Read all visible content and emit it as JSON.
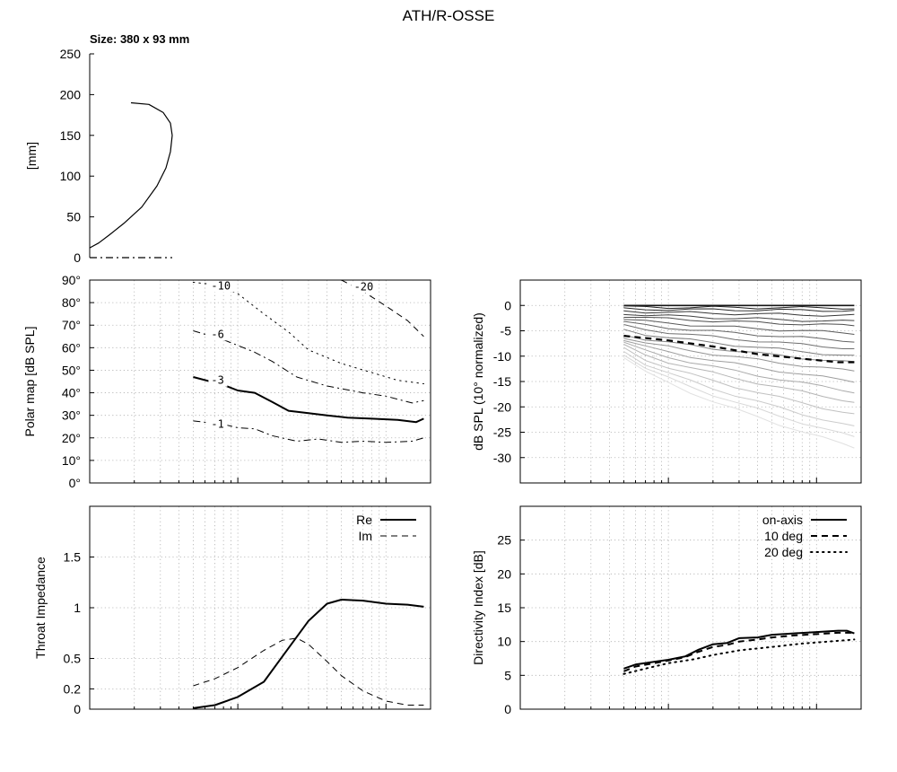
{
  "page": {
    "title": "ATH/R-OSSE",
    "size_label": "Size: 380 x 93 mm"
  },
  "chart_data": [
    {
      "id": "profile",
      "type": "line",
      "ylabel": "[mm]",
      "ylim": [
        0,
        250
      ],
      "xlim": [
        0,
        380
      ],
      "yticks": [
        "0",
        "50",
        "100",
        "150",
        "200",
        "250"
      ],
      "series": [
        {
          "style": "solid",
          "x": [
            0,
            10,
            22,
            38,
            58,
            75,
            85,
            90,
            92,
            90,
            82,
            66,
            46
          ],
          "y": [
            12,
            18,
            28,
            42,
            62,
            88,
            110,
            130,
            150,
            165,
            178,
            188,
            190
          ]
        },
        {
          "style": "dashdot",
          "x": [
            0,
            92
          ],
          "y": [
            0,
            0
          ]
        }
      ]
    },
    {
      "id": "polar_map",
      "type": "line",
      "ylabel": "Polar map [dB SPL]",
      "ylim": [
        0,
        90
      ],
      "xscale": "log",
      "xlim": [
        100,
        20000
      ],
      "yticks": [
        "0°",
        "10°",
        "20°",
        "30°",
        "40°",
        "50°",
        "60°",
        "70°",
        "80°",
        "90°"
      ],
      "series": [
        {
          "contour": "-1",
          "style": "dashdot",
          "width": 1,
          "x": [
            500,
            800,
            1000,
            1300,
            1700,
            2500,
            3500,
            5000,
            7000,
            10000,
            15000,
            18000
          ],
          "y": [
            27.5,
            26,
            24.5,
            24,
            21,
            18.5,
            19.5,
            18,
            18.5,
            18,
            18.5,
            20
          ]
        },
        {
          "contour": "-3",
          "style": "solid",
          "width": 2,
          "x": [
            500,
            800,
            1000,
            1300,
            1700,
            2200,
            3000,
            4000,
            5500,
            8000,
            12000,
            16000,
            18000
          ],
          "y": [
            47,
            43.5,
            41,
            40,
            36,
            32,
            31,
            30,
            29,
            28.5,
            28,
            27,
            28.5
          ]
        },
        {
          "contour": "-6",
          "style": "dashdot",
          "width": 1,
          "x": [
            500,
            800,
            1000,
            1300,
            1700,
            2500,
            4000,
            7000,
            10000,
            15000,
            18000
          ],
          "y": [
            67.5,
            63.5,
            61,
            58,
            54,
            47,
            43,
            40,
            38.5,
            35.5,
            36.5
          ]
        },
        {
          "contour": "-10",
          "style": "dotted",
          "width": 1,
          "x": [
            500,
            700,
            1000,
            1500,
            2200,
            3000,
            5000,
            8000,
            12000,
            18000
          ],
          "y": [
            89,
            88,
            84,
            75,
            67,
            59,
            53,
            49,
            45.5,
            44
          ]
        },
        {
          "contour": "-20",
          "style": "dashed",
          "width": 1,
          "x": [
            5000,
            7000,
            10000,
            14000,
            18000
          ],
          "y": [
            90,
            85,
            78.5,
            72,
            65
          ]
        }
      ]
    },
    {
      "id": "normalized_spl",
      "type": "line",
      "ylabel": "dB SPL (10° normalized)",
      "ylim": [
        -35,
        5
      ],
      "xscale": "log",
      "xlim": [
        100,
        20000
      ],
      "yticks": [
        "0",
        "-5",
        "-10",
        "-15",
        "-20",
        "-25",
        "-30"
      ],
      "family_start_db": [
        0,
        -0.3,
        -0.7,
        -1.1,
        -1.6,
        -2.1,
        -2.7,
        -3.3,
        -4.0,
        -4.8,
        -5.7
      ],
      "family_end_db": [
        0,
        -0.5,
        -1.0,
        -2.0,
        -3.2,
        -4.0,
        -5.5,
        -7.0,
        -8.5,
        -10.0,
        -11.3,
        -13.0,
        -15.0,
        -17.0,
        -19.0,
        -21.5,
        -24.0,
        -26.0,
        -28.0
      ],
      "highlight": {
        "style": "dashed",
        "x": [
          500,
          1000,
          2000,
          4000,
          8000,
          14000,
          18000
        ],
        "y": [
          -6,
          -6.9,
          -8.1,
          -9.6,
          -10.5,
          -11.2,
          -11.2
        ]
      }
    },
    {
      "id": "throat_impedance",
      "type": "line",
      "ylabel": "Throat Impedance",
      "ylim": [
        0,
        2
      ],
      "xscale": "log",
      "xlim": [
        100,
        20000
      ],
      "yticks": [
        "0",
        "0.2",
        "0.5",
        "1",
        "1.5"
      ],
      "ytick_values": [
        0,
        0.2,
        0.5,
        1,
        1.5
      ],
      "legend_position": "top-right",
      "series": [
        {
          "name": "Re",
          "style": "solid",
          "width": 2,
          "x": [
            500,
            700,
            1000,
            1500,
            2000,
            3000,
            4000,
            5000,
            7000,
            10000,
            14000,
            18000
          ],
          "y": [
            0.01,
            0.04,
            0.12,
            0.27,
            0.52,
            0.87,
            1.04,
            1.08,
            1.07,
            1.04,
            1.03,
            1.01
          ]
        },
        {
          "name": "Im",
          "style": "dashed",
          "width": 1,
          "x": [
            500,
            700,
            1000,
            1500,
            2000,
            2500,
            3000,
            4000,
            5000,
            7000,
            10000,
            14000,
            18000
          ],
          "y": [
            0.23,
            0.3,
            0.41,
            0.58,
            0.68,
            0.7,
            0.64,
            0.47,
            0.33,
            0.18,
            0.08,
            0.04,
            0.04
          ]
        }
      ]
    },
    {
      "id": "directivity_index",
      "type": "line",
      "ylabel": "Directivity Index [dB]",
      "ylim": [
        0,
        30
      ],
      "xscale": "log",
      "xlim": [
        100,
        20000
      ],
      "yticks": [
        "0",
        "5",
        "10",
        "15",
        "20",
        "25"
      ],
      "legend_position": "top-right",
      "series": [
        {
          "name": "on-axis",
          "style": "solid",
          "width": 2,
          "x": [
            500,
            600,
            800,
            1000,
            1300,
            1600,
            2000,
            2500,
            3000,
            4000,
            5000,
            7000,
            10000,
            14000,
            16000,
            18000
          ],
          "y": [
            6,
            6.6,
            7,
            7.3,
            7.8,
            8.8,
            9.6,
            9.8,
            10.5,
            10.6,
            11,
            11.2,
            11.4,
            11.6,
            11.6,
            11.2
          ]
        },
        {
          "name": "10 deg",
          "style": "dashed",
          "width": 2,
          "x": [
            500,
            600,
            800,
            1000,
            1300,
            1600,
            2000,
            2500,
            3000,
            4000,
            5000,
            7000,
            10000,
            14000,
            18000
          ],
          "y": [
            5.6,
            6.3,
            6.8,
            7.2,
            7.7,
            8.5,
            9.2,
            9.5,
            10,
            10.3,
            10.6,
            10.9,
            11.1,
            11.3,
            11.3
          ]
        },
        {
          "name": "20 deg",
          "style": "dotted",
          "width": 2,
          "x": [
            500,
            700,
            1000,
            1500,
            2000,
            3000,
            5000,
            8000,
            12000,
            18000
          ],
          "y": [
            5.2,
            6,
            6.8,
            7.4,
            8,
            8.7,
            9.2,
            9.7,
            10,
            10.3
          ]
        }
      ]
    }
  ]
}
